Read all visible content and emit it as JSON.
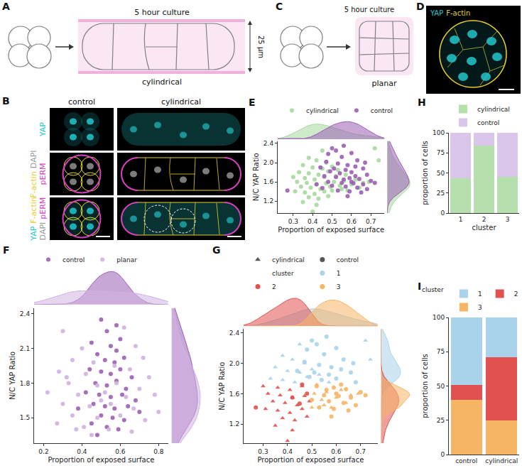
{
  "chart_data": [
    {
      "panel": "E",
      "type": "scatter",
      "x_label": "Proportion of exposed surface",
      "y_label": "N/C YAP Ratio",
      "xlim": [
        0.22,
        0.77
      ],
      "xticks": [
        0.3,
        0.4,
        0.5,
        0.6,
        0.7
      ],
      "ylim": [
        0.95,
        2.45
      ],
      "yticks": [
        1.2,
        1.6,
        {
          "value": 2,
          "label": "2.0"
        },
        2.4
      ],
      "grid": false,
      "legend": "top",
      "series": [
        {
          "name": "cylindrical",
          "color": "#a8d8a0",
          "marker": "circle",
          "x": [
            0.38,
            0.42,
            0.47,
            0.72,
            0.74,
            0.35,
            0.4,
            0.45,
            0.5,
            0.33,
            0.38,
            0.43,
            0.48,
            0.53,
            0.3,
            0.36,
            0.41,
            0.46,
            0.52,
            0.57,
            0.32,
            0.37,
            0.42,
            0.47,
            0.51,
            0.56,
            0.62,
            0.34,
            0.39,
            0.44,
            0.49,
            0.54,
            0.6,
            0.66,
            0.31,
            0.36,
            0.41,
            0.46,
            0.5,
            0.55,
            0.64,
            0.38,
            0.43,
            0.48,
            0.35,
            0.42,
            0.4,
            0.58,
            0.69,
            0.45
          ],
          "y": [
            2.1,
            2.05,
            2.0,
            2.3,
            2.05,
            1.95,
            1.9,
            1.88,
            1.92,
            1.8,
            1.78,
            1.75,
            1.82,
            1.85,
            1.7,
            1.68,
            1.65,
            1.7,
            1.72,
            1.75,
            1.6,
            1.58,
            1.55,
            1.57,
            1.6,
            1.62,
            1.65,
            1.5,
            1.48,
            1.45,
            1.5,
            1.52,
            1.55,
            1.58,
            1.4,
            1.38,
            1.35,
            1.4,
            1.42,
            1.45,
            1.48,
            1.28,
            1.25,
            1.3,
            1.18,
            1.12,
            0.98,
            1.42,
            1.6,
            2.25
          ]
        },
        {
          "name": "control",
          "color": "#9b5fb5",
          "marker": "circle",
          "x": [
            0.5,
            0.52,
            0.56,
            0.48,
            0.55,
            0.6,
            0.63,
            0.47,
            0.53,
            0.58,
            0.62,
            0.44,
            0.51,
            0.57,
            0.66,
            0.49,
            0.54,
            0.6,
            0.68,
            0.46,
            0.52,
            0.59,
            0.64,
            0.7,
            0.48,
            0.55,
            0.61,
            0.66,
            0.72,
            0.5,
            0.57,
            0.63,
            0.68,
            0.45,
            0.53,
            0.59,
            0.65,
            0.6,
            0.56,
            0.62,
            0.27,
            0.42,
            0.58,
            0.67
          ],
          "y": [
            2.3,
            2.25,
            2.35,
            2.18,
            2.12,
            2.2,
            2.05,
            2.02,
            1.98,
            1.95,
            1.92,
            1.9,
            1.88,
            1.85,
            1.88,
            1.82,
            1.78,
            1.8,
            1.75,
            1.72,
            1.7,
            1.68,
            1.66,
            1.62,
            1.6,
            1.58,
            1.57,
            1.55,
            1.58,
            1.52,
            1.5,
            1.48,
            1.45,
            1.47,
            1.42,
            1.4,
            1.38,
            1.6,
            1.65,
            1.72,
            1.42,
            1.55,
            1.3,
            2.0
          ]
        }
      ]
    },
    {
      "panel": "F",
      "type": "scatter",
      "x_label": "Proportion of exposed surface",
      "y_label": "N/C YAP Ratio",
      "xlim": [
        0.15,
        0.85
      ],
      "xticks": [
        0.2,
        0.4,
        0.6,
        0.8
      ],
      "ylim": [
        1.28,
        2.45
      ],
      "yticks": [
        1.5,
        1.8,
        2.1,
        2.4
      ],
      "grid": false,
      "legend": "top",
      "series": [
        {
          "name": "control",
          "color": "#9b5fb5",
          "marker": "circle",
          "x": [
            0.5,
            0.53,
            0.58,
            0.45,
            0.55,
            0.6,
            0.48,
            0.52,
            0.57,
            0.62,
            0.44,
            0.5,
            0.55,
            0.6,
            0.66,
            0.47,
            0.53,
            0.58,
            0.63,
            0.42,
            0.49,
            0.55,
            0.61,
            0.68,
            0.46,
            0.52,
            0.57,
            0.64,
            0.5,
            0.56,
            0.62,
            0.45,
            0.53,
            0.59,
            0.48,
            0.7,
            0.38,
            0.58
          ],
          "y": [
            2.35,
            2.25,
            2.3,
            2.15,
            2.12,
            2.18,
            2.05,
            2.0,
            1.98,
            2.02,
            1.92,
            1.9,
            1.88,
            1.92,
            1.85,
            1.8,
            1.78,
            1.82,
            1.75,
            1.72,
            1.7,
            1.68,
            1.7,
            1.65,
            1.62,
            1.6,
            1.58,
            1.6,
            1.52,
            1.5,
            1.48,
            1.45,
            1.42,
            1.4,
            1.35,
            1.55,
            1.58,
            2.08
          ]
        },
        {
          "name": "planar",
          "color": "#cfb3e0",
          "marker": "circle",
          "x": [
            0.3,
            0.62,
            0.4,
            0.68,
            0.35,
            0.46,
            0.72,
            0.28,
            0.42,
            0.65,
            0.75,
            0.33,
            0.48,
            0.58,
            0.7,
            0.22,
            0.38,
            0.52,
            0.63,
            0.78,
            0.3,
            0.44,
            0.55,
            0.67,
            0.35,
            0.48,
            0.6,
            0.73,
            0.27,
            0.41,
            0.54,
            0.66,
            0.45,
            0.32,
            0.57,
            0.5,
            0.8,
            0.37
          ],
          "y": [
            2.25,
            2.28,
            2.1,
            2.12,
            2.0,
            1.98,
            2.02,
            1.9,
            1.88,
            1.92,
            1.85,
            1.8,
            1.78,
            1.8,
            1.75,
            1.72,
            1.7,
            1.72,
            1.68,
            1.7,
            1.62,
            1.6,
            1.62,
            1.58,
            1.52,
            1.5,
            1.52,
            1.48,
            1.45,
            1.42,
            1.4,
            1.38,
            1.35,
            1.85,
            1.95,
            1.65,
            1.55,
            1.4
          ]
        }
      ]
    },
    {
      "panel": "G",
      "type": "scatter",
      "x_label": "Proportion of exposed surface",
      "y_label": "N/C YAP Ratio",
      "xlim": [
        0.22,
        0.77
      ],
      "xticks": [
        0.3,
        0.4,
        0.5,
        0.6,
        0.7
      ],
      "ylim": [
        0.95,
        2.45
      ],
      "yticks": [
        1.2,
        1.6,
        {
          "value": 2,
          "label": "2.0"
        },
        2.4
      ],
      "grid": false,
      "legend": "top",
      "cluster_title": "cluster",
      "clusters": [
        {
          "name": "1",
          "color": "#a9d3ea"
        },
        {
          "name": "2",
          "color": "#e0514f"
        },
        {
          "name": "3",
          "color": "#f6b564"
        }
      ],
      "series": [
        {
          "name": "cylindrical",
          "marker": "triangle-up",
          "x": [
            0.38,
            0.42,
            0.47,
            0.72,
            0.74,
            0.35,
            0.4,
            0.45,
            0.5,
            0.33,
            0.38,
            0.43,
            0.48,
            0.53,
            0.3,
            0.36,
            0.41,
            0.46,
            0.52,
            0.57,
            0.32,
            0.37,
            0.42,
            0.47,
            0.51,
            0.56,
            0.62,
            0.34,
            0.39,
            0.44,
            0.49,
            0.54,
            0.6,
            0.66,
            0.31,
            0.36,
            0.41,
            0.46,
            0.5,
            0.55,
            0.64,
            0.38,
            0.43,
            0.48,
            0.35,
            0.42,
            0.4,
            0.58,
            0.69,
            0.45
          ],
          "y": [
            2.1,
            2.05,
            2.0,
            2.3,
            2.05,
            1.95,
            1.9,
            1.88,
            1.92,
            1.8,
            1.78,
            1.75,
            1.82,
            1.85,
            1.7,
            1.68,
            1.65,
            1.7,
            1.72,
            1.75,
            1.6,
            1.58,
            1.55,
            1.57,
            1.6,
            1.62,
            1.65,
            1.5,
            1.48,
            1.45,
            1.5,
            1.52,
            1.55,
            1.58,
            1.4,
            1.38,
            1.35,
            1.4,
            1.42,
            1.45,
            1.48,
            1.28,
            1.25,
            1.3,
            1.18,
            1.12,
            0.98,
            1.42,
            1.6,
            2.25
          ],
          "cluster": [
            "1",
            "1",
            "1",
            "1",
            "1",
            "1",
            "1",
            "1",
            "1",
            "1",
            "1",
            "1",
            "1",
            "1",
            "2",
            "2",
            "2",
            "2",
            "3",
            "1",
            "2",
            "2",
            "2",
            "2",
            "3",
            "3",
            "3",
            "2",
            "2",
            "2",
            "2",
            "3",
            "3",
            "3",
            "2",
            "2",
            "2",
            "2",
            "3",
            "3",
            "3",
            "2",
            "2",
            "2",
            "2",
            "2",
            "2",
            "3",
            "3",
            "1"
          ]
        },
        {
          "name": "control",
          "marker": "circle",
          "x": [
            0.5,
            0.52,
            0.56,
            0.48,
            0.55,
            0.6,
            0.63,
            0.47,
            0.53,
            0.58,
            0.62,
            0.44,
            0.51,
            0.57,
            0.66,
            0.49,
            0.54,
            0.6,
            0.68,
            0.46,
            0.52,
            0.59,
            0.64,
            0.7,
            0.48,
            0.55,
            0.61,
            0.66,
            0.72,
            0.5,
            0.57,
            0.63,
            0.68,
            0.45,
            0.53,
            0.59,
            0.65,
            0.6,
            0.56,
            0.62,
            0.27,
            0.42,
            0.58,
            0.67
          ],
          "y": [
            2.3,
            2.25,
            2.35,
            2.18,
            2.12,
            2.2,
            2.05,
            2.02,
            1.98,
            1.95,
            1.92,
            1.9,
            1.88,
            1.85,
            1.88,
            1.82,
            1.78,
            1.8,
            1.75,
            1.72,
            1.7,
            1.68,
            1.66,
            1.62,
            1.6,
            1.58,
            1.57,
            1.55,
            1.58,
            1.52,
            1.5,
            1.48,
            1.45,
            1.47,
            1.42,
            1.4,
            1.38,
            1.6,
            1.65,
            1.72,
            1.42,
            1.55,
            1.3,
            2.0
          ],
          "cluster": [
            "1",
            "1",
            "1",
            "1",
            "1",
            "1",
            "1",
            "1",
            "1",
            "1",
            "1",
            "1",
            "1",
            "1",
            "1",
            "1",
            "1",
            "1",
            "1",
            "2",
            "3",
            "3",
            "3",
            "3",
            "2",
            "3",
            "3",
            "3",
            "3",
            "3",
            "3",
            "3",
            "3",
            "2",
            "3",
            "3",
            "3",
            "3",
            "3",
            "3",
            "2",
            "2",
            "3",
            "1"
          ]
        }
      ]
    },
    {
      "panel": "H",
      "type": "bar",
      "stacked": true,
      "x_label": "cluster",
      "y_label": "proportion of cells",
      "categories": [
        "1",
        "2",
        "3"
      ],
      "ylim": [
        0,
        100
      ],
      "yticks": [
        0,
        25,
        50,
        75,
        100
      ],
      "grid": false,
      "legend": "top",
      "series": [
        {
          "name": "cylindrical",
          "color": "#b5e0ad",
          "values": [
            43,
            84,
            45
          ]
        },
        {
          "name": "control",
          "color": "#d9c6ea",
          "values": [
            57,
            16,
            55
          ]
        }
      ]
    },
    {
      "panel": "I",
      "type": "bar",
      "stacked": true,
      "y_label": "proportion of cells",
      "categories": [
        "control",
        "cylindrical"
      ],
      "ylim": [
        0,
        100
      ],
      "yticks": [
        0,
        25,
        50,
        75,
        100
      ],
      "grid": false,
      "legend": "top",
      "legend_title": "cluster",
      "series": [
        {
          "name": "3",
          "color": "#f6b564",
          "values": [
            40,
            25
          ]
        },
        {
          "name": "2",
          "color": "#e0514f",
          "values": [
            11,
            46
          ]
        },
        {
          "name": "1",
          "color": "#a9d3ea",
          "values": [
            49,
            29
          ]
        }
      ]
    }
  ],
  "diagrams": {
    "A": {
      "label": "A",
      "top_text": "5 hour culture",
      "bottom_text": "cylindrical",
      "dimension": "25 µm"
    },
    "C": {
      "label": "C",
      "top_text": "5 hour culture",
      "bottom_text": "planar"
    }
  },
  "micrographs": {
    "channel_colors": {
      "YAP": "#22c8cc",
      "F-actin": "#e3cf2e",
      "DAPI": "#9a9a9a",
      "pERM": "#d63fbf"
    },
    "B": {
      "label": "B",
      "columns": [
        "control",
        "cylindrical"
      ],
      "rows": [
        [
          [
            "YAP"
          ]
        ],
        [
          [
            "F-actin",
            "DAPI"
          ],
          [
            "pERM"
          ]
        ],
        [
          [
            "YAP",
            "F-actin"
          ],
          [
            "DAPI",
            "pERM"
          ]
        ]
      ]
    },
    "D": {
      "label": "D",
      "channels": [
        "YAP",
        "F-actin"
      ]
    }
  }
}
